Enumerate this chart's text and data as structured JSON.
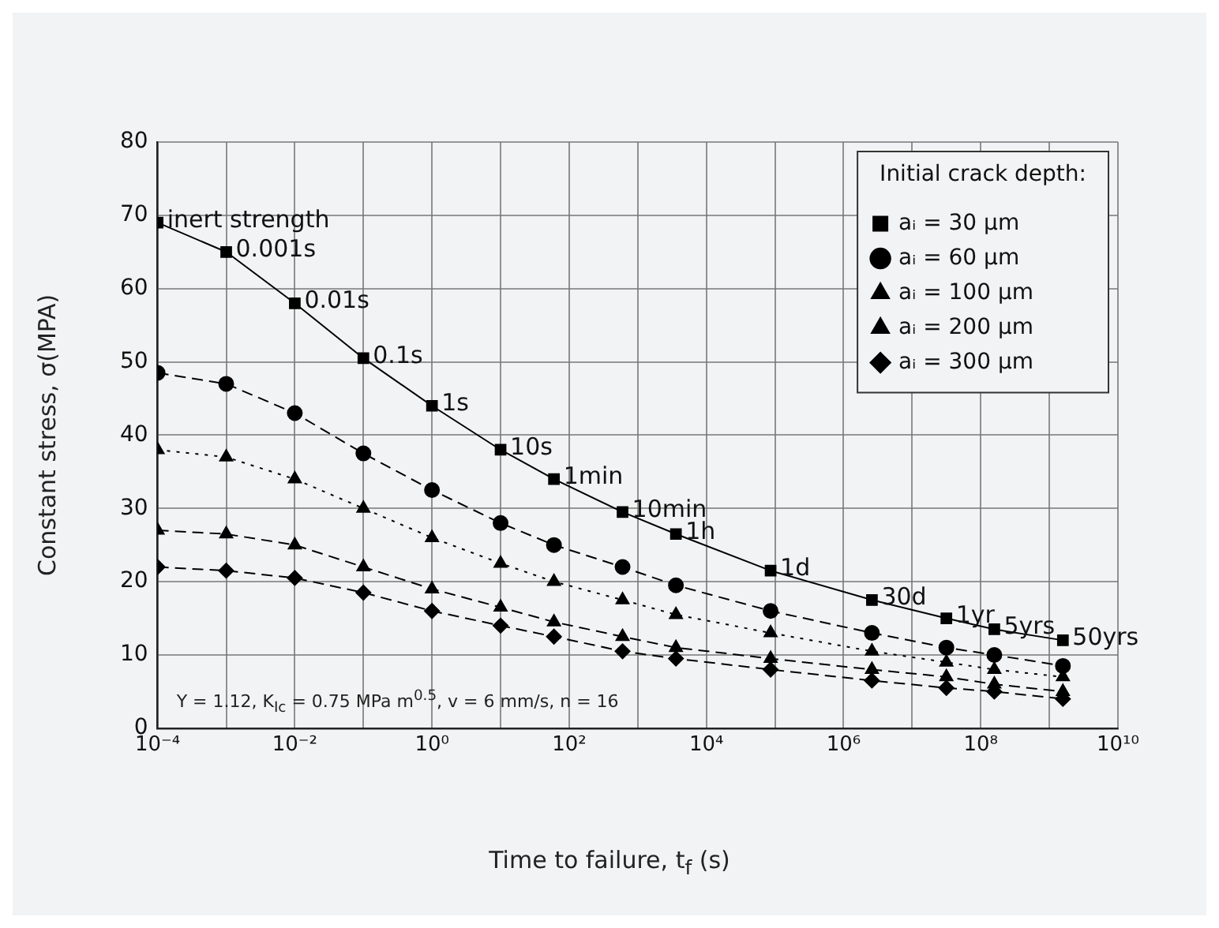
{
  "chart_data": {
    "type": "line",
    "xlabel": "Time to failure, t$_{f}$ (s)",
    "ylabel": "Constant stress, σ(MPA)",
    "legend_title": "Initial crack depth:",
    "legend": "top right",
    "grid": true,
    "log": "x",
    "x": [
      0.0001,
      0.001,
      0.01,
      0.1,
      1,
      10,
      60,
      600,
      3600,
      86400,
      2592000,
      31536000,
      157680000,
      1576800000
    ],
    "xlim": [
      0.0001,
      10000000000
    ],
    "xticks": [
      {
        "value": 0.0001,
        "label": "10⁻⁴"
      },
      {
        "value": 0.001,
        "label": null
      },
      {
        "value": 0.01,
        "label": "10⁻²"
      },
      {
        "value": 0.1,
        "label": null
      },
      {
        "value": 1,
        "label": "10⁰"
      },
      {
        "value": 10,
        "label": null
      },
      {
        "value": 100,
        "label": "10²"
      },
      {
        "value": 1000,
        "label": null
      },
      {
        "value": 10000,
        "label": "10⁴"
      },
      {
        "value": 100000,
        "label": null
      },
      {
        "value": 1000000,
        "label": "10⁶"
      },
      {
        "value": 10000000,
        "label": null
      },
      {
        "value": 100000000,
        "label": "10⁸"
      },
      {
        "value": 1000000000,
        "label": null
      },
      {
        "value": 10000000000,
        "label": "10¹⁰"
      }
    ],
    "ylim": [
      0,
      80
    ],
    "yticks": [
      0,
      10,
      20,
      30,
      40,
      50,
      60,
      70,
      80
    ],
    "series": [
      {
        "name": "aᵢ = 30 µm",
        "color": "#000000",
        "marker": "square",
        "line_style": "solid",
        "values": [
          69,
          65,
          58,
          50.5,
          44,
          38,
          34,
          29.5,
          26.5,
          21.5,
          17.5,
          15,
          13.5,
          12
        ]
      },
      {
        "name": "aᵢ = 60 µm",
        "color": "#000000",
        "marker": "circle",
        "line_style": "dashed",
        "values": [
          48.5,
          47,
          43,
          37.5,
          32.5,
          28,
          25,
          22,
          19.5,
          16,
          13,
          11,
          10,
          8.5
        ]
      },
      {
        "name": "aᵢ = 100 µm",
        "color": "#000000",
        "marker": "triangle",
        "line_style": "dotted",
        "values": [
          38,
          37,
          34,
          30,
          26,
          22.5,
          20,
          17.5,
          15.5,
          13,
          10.5,
          9,
          8,
          7
        ]
      },
      {
        "name": "aᵢ = 200 µm",
        "color": "#000000",
        "marker": "triangle",
        "line_style": "dashed",
        "values": [
          27,
          26.5,
          25,
          22,
          19,
          16.5,
          14.5,
          12.5,
          11,
          9.5,
          8,
          7,
          6,
          5
        ]
      },
      {
        "name": "aᵢ = 300 µm",
        "color": "#000000",
        "marker": "diamond",
        "line_style": "dashed",
        "values": [
          22,
          21.5,
          20.5,
          18.5,
          16,
          14,
          12.5,
          10.5,
          9.5,
          8,
          6.5,
          5.5,
          5,
          4
        ]
      }
    ],
    "annotations": [
      {
        "text": "inert strength",
        "x": 0.0001,
        "y": 69
      },
      {
        "text": "0.001s",
        "x": 0.001,
        "y": 65
      },
      {
        "text": "0.01s",
        "x": 0.01,
        "y": 58
      },
      {
        "text": "0.1s",
        "x": 0.1,
        "y": 50.5
      },
      {
        "text": "1s",
        "x": 1,
        "y": 44
      },
      {
        "text": "10s",
        "x": 10,
        "y": 38
      },
      {
        "text": "1min",
        "x": 60,
        "y": 34
      },
      {
        "text": "10min",
        "x": 600,
        "y": 29.5
      },
      {
        "text": "1h",
        "x": 3600,
        "y": 26.5
      },
      {
        "text": "1d",
        "x": 86400,
        "y": 21.5
      },
      {
        "text": "30d",
        "x": 2592000,
        "y": 17.5
      },
      {
        "text": "1yr",
        "x": 31536000,
        "y": 15
      },
      {
        "text": "5yrs",
        "x": 157680000,
        "y": 13.5
      },
      {
        "text": "50yrs",
        "x": 1576800000,
        "y": 12
      },
      "Y = 1.12, K$_{Ic}$ = 0.75 MPa m$^{0.5}$, v = 6 mm/s, n = 16"
    ]
  }
}
